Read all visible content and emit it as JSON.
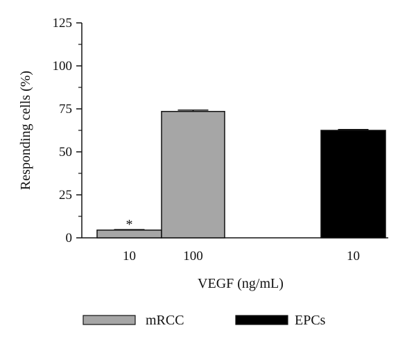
{
  "chart_data": {
    "type": "bar",
    "xlabel": "VEGF (ng/mL)",
    "ylabel": "Responding cells (%)",
    "ylim": [
      0,
      125
    ],
    "yticks": [
      0,
      25,
      50,
      75,
      100,
      125
    ],
    "grid": false,
    "legend_placement": "bottom",
    "bars": [
      {
        "category": "10",
        "series": "mRCC",
        "value": 4.5,
        "error": 0.3,
        "annotation": "*"
      },
      {
        "category": "100",
        "series": "mRCC",
        "value": 73.5,
        "error": 0.8,
        "annotation": ""
      },
      {
        "category": "10",
        "series": "EPCs",
        "value": 62.5,
        "error": 0.5,
        "annotation": ""
      }
    ],
    "series": [
      {
        "name": "mRCC",
        "color": "#a6a6a6"
      },
      {
        "name": "EPCs",
        "color": "#000000"
      }
    ]
  }
}
